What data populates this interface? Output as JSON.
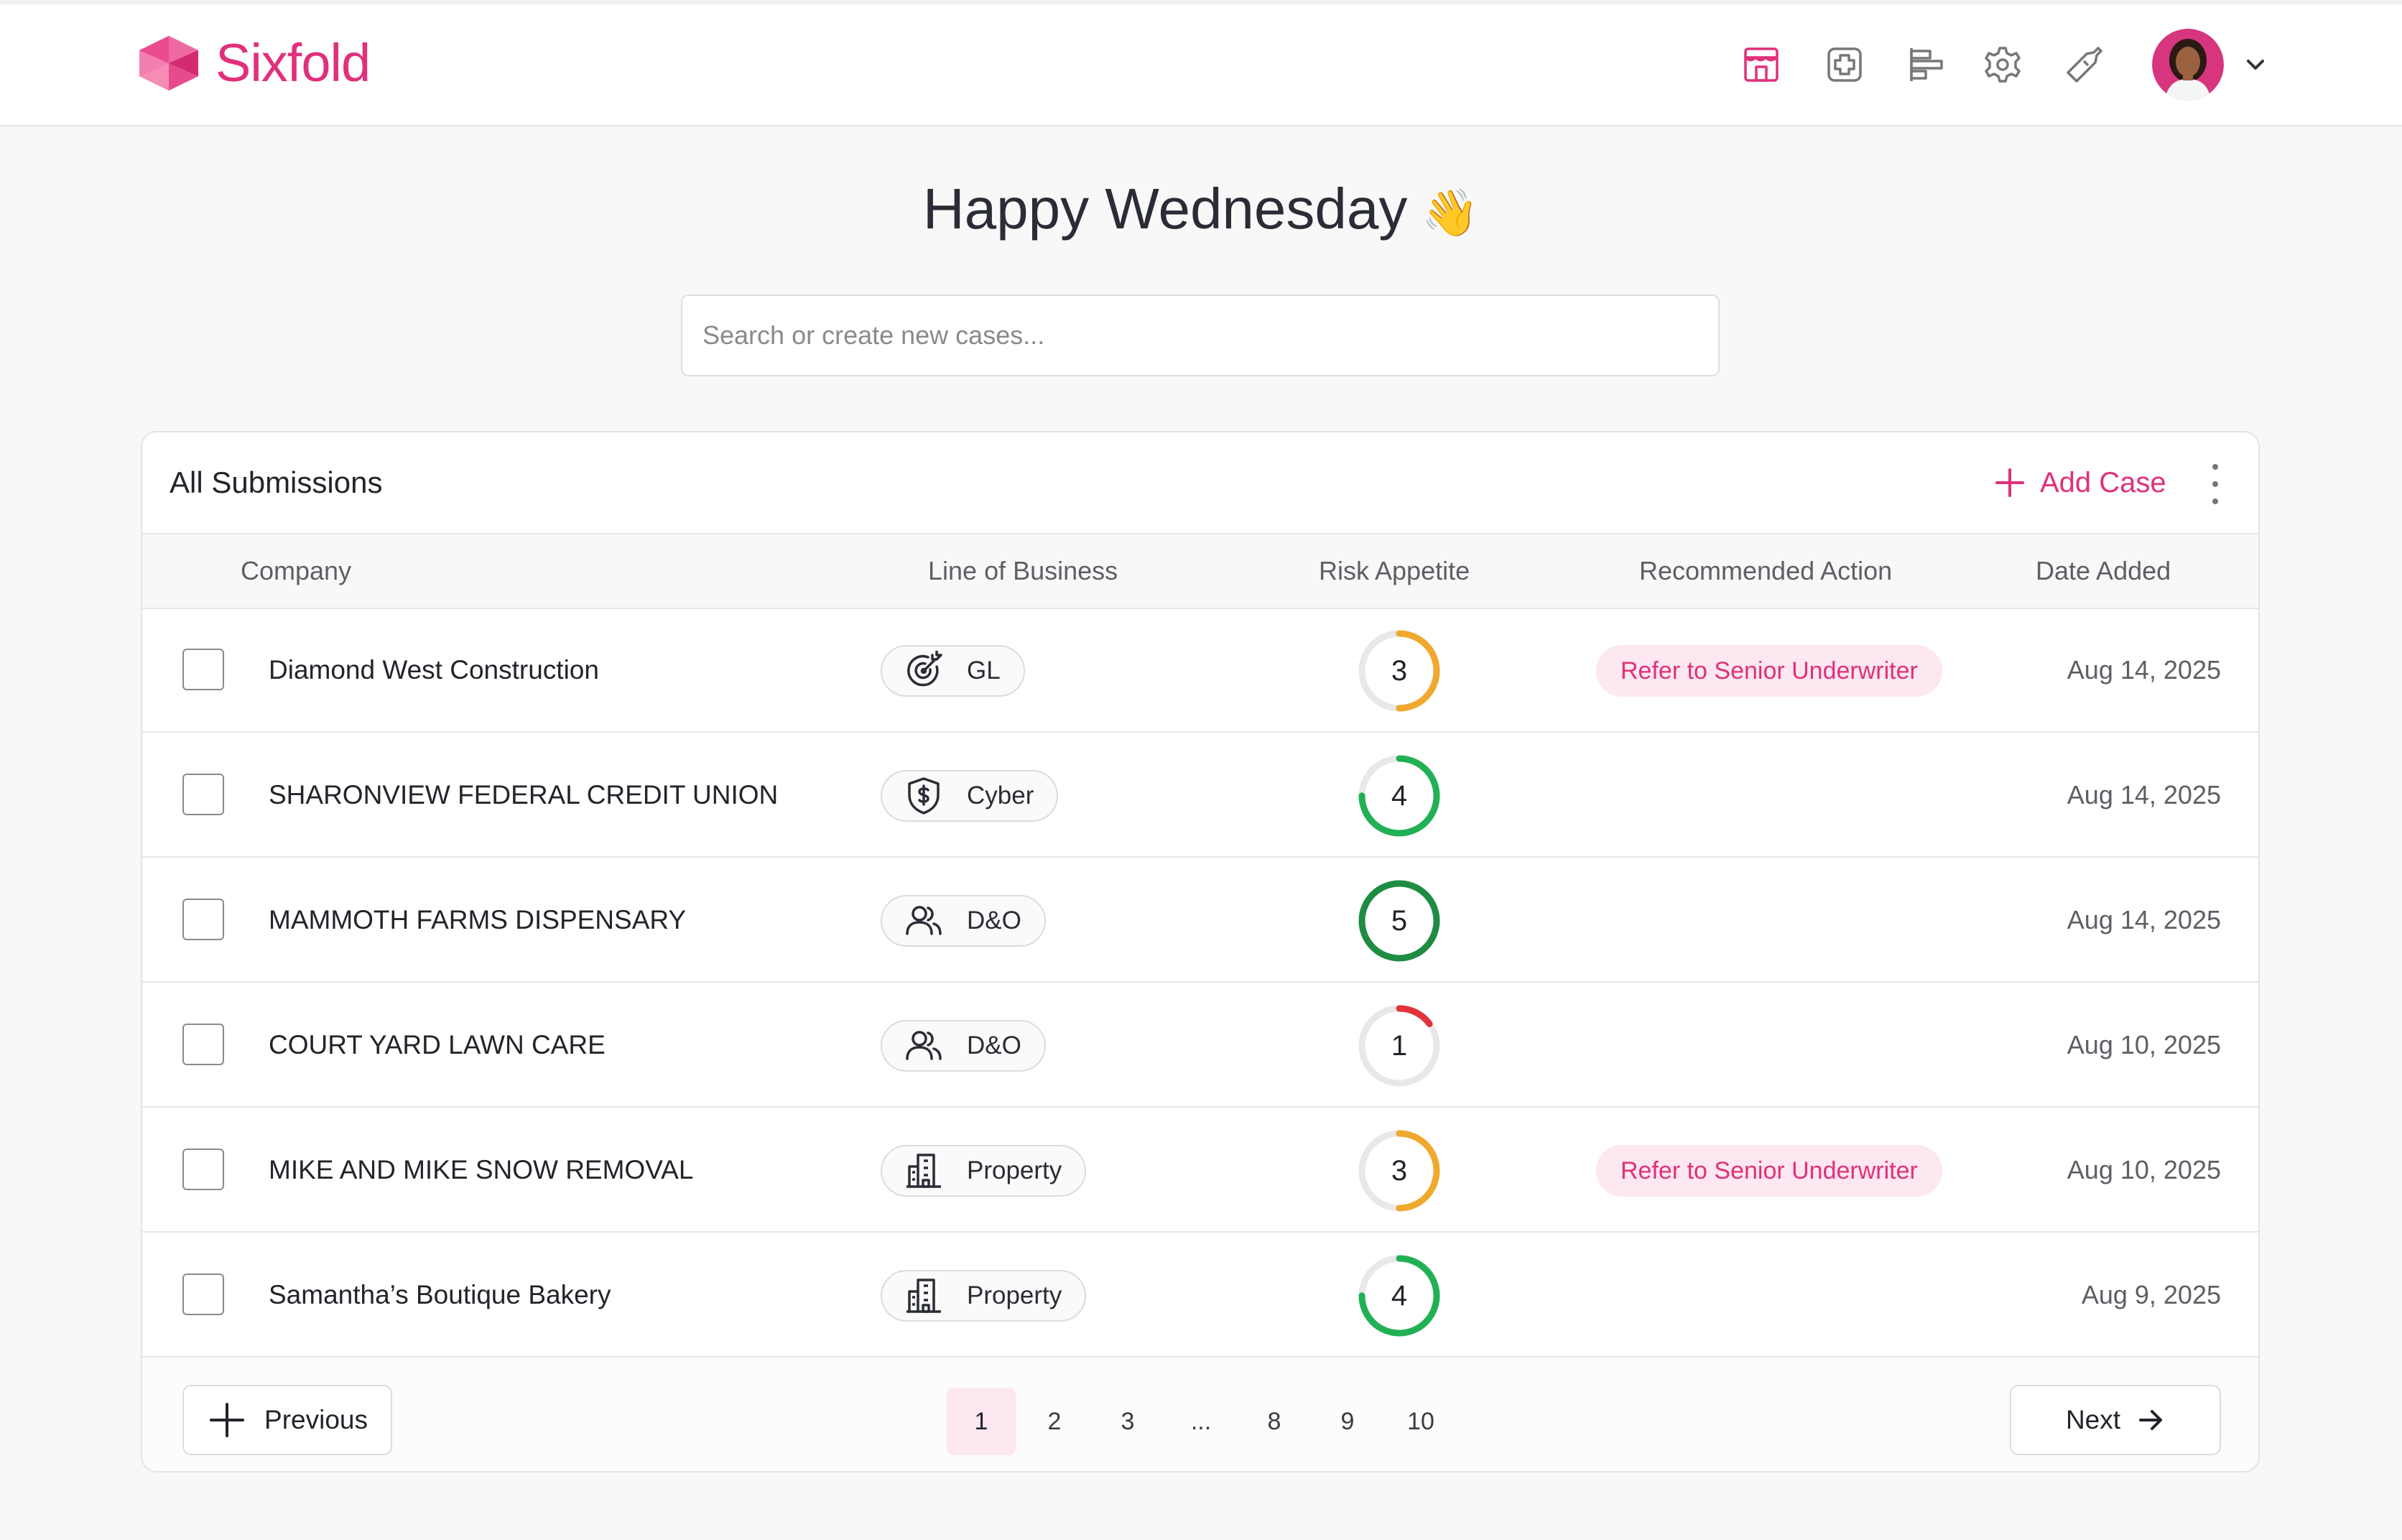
{
  "app": {
    "name": "Sixfold"
  },
  "header": {
    "nav_icons": [
      "dashboard-icon",
      "cases-icon",
      "reports-icon",
      "settings-icon",
      "tools-icon"
    ],
    "accent_color": "#e0307b"
  },
  "greeting": {
    "text": "Happy Wednesday",
    "emoji": "👋"
  },
  "search": {
    "placeholder": "Search or create new cases..."
  },
  "submissions": {
    "title": "All Submissions",
    "add_case_label": "Add Case",
    "columns": {
      "company": "Company",
      "line_of_business": "Line of Business",
      "risk_appetite": "Risk Appetite",
      "recommended_action": "Recommended Action",
      "date_added": "Date Added"
    },
    "rows": [
      {
        "company": "Diamond West Construction",
        "lob": "GL",
        "lob_icon": "target-icon",
        "risk": "3",
        "risk_fraction": 0.5,
        "risk_color": "#f0a92e",
        "action": "Refer to Senior Underwriter",
        "date": "Aug 14, 2025"
      },
      {
        "company": "SHARONVIEW FEDERAL CREDIT UNION",
        "lob": "Cyber",
        "lob_icon": "shield-dollar-icon",
        "risk": "4",
        "risk_fraction": 0.75,
        "risk_color": "#22b055",
        "action": "",
        "date": "Aug 14, 2025"
      },
      {
        "company": "MAMMOTH FARMS DISPENSARY",
        "lob": "D&O",
        "lob_icon": "people-icon",
        "risk": "5",
        "risk_fraction": 1.0,
        "risk_color": "#1e8c43",
        "action": "",
        "date": "Aug 14, 2025"
      },
      {
        "company": "COURT YARD LAWN CARE",
        "lob": "D&O",
        "lob_icon": "people-icon",
        "risk": "1",
        "risk_fraction": 0.15,
        "risk_color": "#e2323a",
        "action": "",
        "date": "Aug 10, 2025"
      },
      {
        "company": "MIKE AND MIKE SNOW REMOVAL",
        "lob": "Property",
        "lob_icon": "building-icon",
        "risk": "3",
        "risk_fraction": 0.5,
        "risk_color": "#f0a92e",
        "action": "Refer to Senior Underwriter",
        "date": "Aug 10, 2025"
      },
      {
        "company": "Samantha’s Boutique Bakery",
        "lob": "Property",
        "lob_icon": "building-icon",
        "risk": "4",
        "risk_fraction": 0.75,
        "risk_color": "#22b055",
        "action": "",
        "date": "Aug 9, 2025"
      }
    ]
  },
  "pagination": {
    "previous_label": "Previous",
    "next_label": "Next",
    "pages": [
      "1",
      "2",
      "3",
      "...",
      "8",
      "9",
      "10"
    ],
    "current": "1"
  }
}
